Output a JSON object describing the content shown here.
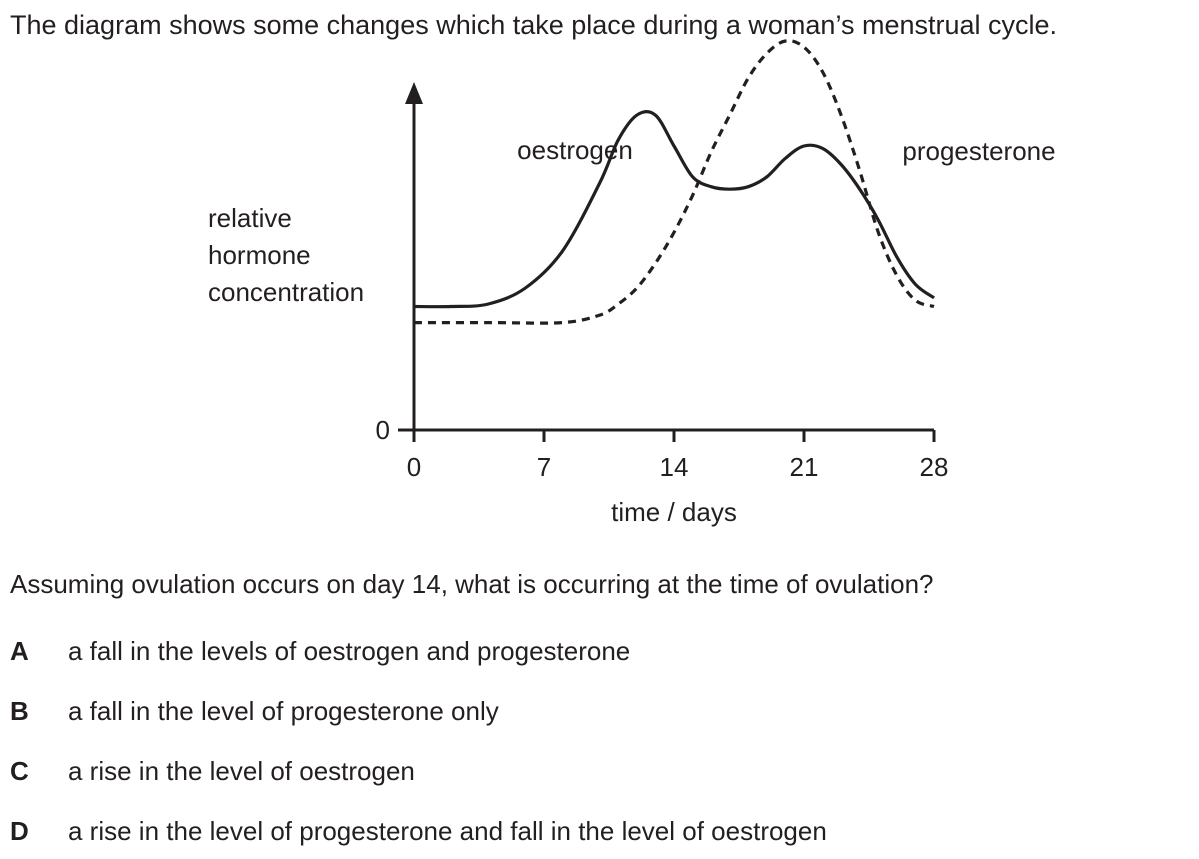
{
  "intro": "The diagram shows some changes which take place during a woman’s menstrual cycle.",
  "question": "Assuming ovulation occurs on day 14, what is occurring at the time of ovulation?",
  "options": [
    {
      "letter": "A",
      "text": "a fall in the levels of oestrogen and progesterone"
    },
    {
      "letter": "B",
      "text": "a fall in the level of progesterone only"
    },
    {
      "letter": "C",
      "text": "a rise in the level of oestrogen"
    },
    {
      "letter": "D",
      "text": "a rise in the level of progesterone and fall in the level of oestrogen"
    }
  ],
  "chart_data": {
    "type": "line",
    "xlabel": "time / days",
    "ylabel": "relative hormone concentration",
    "ylabel_lines": [
      "relative",
      "hormone",
      "concentration"
    ],
    "xlim": [
      0,
      28
    ],
    "x_ticks": [
      "0",
      "7",
      "14",
      "21",
      "28"
    ],
    "y_tick": "0",
    "grid": false,
    "series": [
      {
        "name": "oestrogen",
        "style": "solid",
        "x": [
          0,
          2,
          4,
          6,
          8,
          10,
          11,
          12,
          13,
          14,
          15,
          16,
          17,
          18,
          19,
          20,
          21,
          22,
          23,
          24,
          25,
          26,
          27,
          28
        ],
        "y": [
          1.0,
          1.0,
          1.02,
          1.15,
          1.45,
          2.0,
          2.35,
          2.55,
          2.55,
          2.3,
          2.05,
          1.97,
          1.95,
          1.97,
          2.05,
          2.2,
          2.3,
          2.28,
          2.15,
          1.95,
          1.7,
          1.4,
          1.18,
          1.07
        ]
      },
      {
        "name": "progesterone",
        "style": "dashed",
        "x": [
          0,
          4,
          8,
          10,
          11,
          12,
          13,
          14,
          15,
          16,
          17,
          18,
          19,
          20,
          21,
          22,
          23,
          24,
          25,
          26,
          27,
          28
        ],
        "y": [
          0.87,
          0.87,
          0.87,
          0.93,
          1.02,
          1.15,
          1.35,
          1.6,
          1.9,
          2.25,
          2.55,
          2.85,
          3.05,
          3.15,
          3.1,
          2.9,
          2.55,
          2.1,
          1.6,
          1.25,
          1.05,
          1.0
        ]
      }
    ]
  }
}
